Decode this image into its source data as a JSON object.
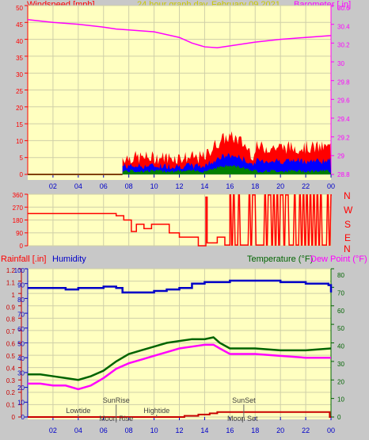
{
  "header": {
    "left": "Windspeed [mph]",
    "center": "24 hour graph day",
    "date": "February 09 2021",
    "right": "Barometer [.in]"
  },
  "bottom_header": {
    "rain": "Rainfall [.in]",
    "humidity": "Humidity",
    "temperature": "Temperature (°F)",
    "dewpoint": "Dew Point (°F)"
  },
  "colors": {
    "background": "#c8c8c8",
    "plot": "#ffffc0",
    "wind_label": "#ff0000",
    "center_label": "#c8c800",
    "baro": "#ff00ff",
    "humidity": "#0000c8",
    "temperature": "#006400",
    "dewpoint": "#ff00ff",
    "wind_gust": "#ff0000",
    "wind_avg": "#0000ff",
    "wind_low": "#008000",
    "direction": "#ff0000",
    "rain": "#c80000"
  },
  "compass_labels": [
    "N",
    "W",
    "S",
    "E",
    "N"
  ],
  "chart_data": [
    {
      "type": "line",
      "name": "wind-baro",
      "x_tick_labels": [
        "02",
        "04",
        "06",
        "08",
        "10",
        "12",
        "14",
        "16",
        "18",
        "20",
        "22",
        "00"
      ],
      "left_axis": {
        "label": "Windspeed [mph]",
        "ticks": [
          "50",
          "45",
          "40",
          "35",
          "30",
          "25",
          "20",
          "15",
          "10",
          "5",
          "0"
        ],
        "ylim": [
          0,
          50
        ]
      },
      "right_axis": {
        "label": "Barometer [.in]",
        "ticks": [
          "30.6",
          "30.4",
          "30.2",
          "30",
          "29.8",
          "29.6",
          "29.4",
          "29.2",
          "29",
          "28.8"
        ],
        "ylim": [
          28.8,
          30.6
        ]
      },
      "series": [
        {
          "name": "Barometer [.in]",
          "axis": "right",
          "x": [
            0,
            2,
            4,
            6,
            7,
            8,
            10,
            12,
            13,
            14,
            15,
            16,
            18,
            20,
            22,
            24
          ],
          "values": [
            30.45,
            30.42,
            30.4,
            30.37,
            30.35,
            30.34,
            30.32,
            30.26,
            30.2,
            30.16,
            30.15,
            30.17,
            30.21,
            30.24,
            30.26,
            30.28
          ]
        },
        {
          "type": "band",
          "axis": "left",
          "x_start": 7.5,
          "x_end": 24,
          "gust_base": 3,
          "gust_amp": 4,
          "avg_base": 1.5,
          "avg_amp": 2,
          "low_base": 0.5,
          "low_amp": 1,
          "peak_start": 14,
          "peak_end": 18,
          "peak_gain": 6,
          "max_gust": 15
        }
      ]
    },
    {
      "type": "step",
      "name": "wind-direction",
      "left_axis": {
        "ticks": [
          "360",
          "270",
          "180",
          "90",
          "0"
        ],
        "ylim": [
          0,
          360
        ]
      },
      "series": [
        {
          "name": "direction",
          "segments": [
            [
              0,
              225
            ],
            [
              7,
              225
            ],
            [
              7,
              210
            ],
            [
              7.6,
              210
            ],
            [
              7.6,
              180
            ],
            [
              8.2,
              180
            ],
            [
              8.2,
              100
            ],
            [
              8.6,
              100
            ],
            [
              8.6,
              150
            ],
            [
              9.2,
              150
            ],
            [
              9.2,
              120
            ],
            [
              9.8,
              120
            ],
            [
              9.8,
              150
            ],
            [
              11.2,
              150
            ],
            [
              11.2,
              90
            ],
            [
              12,
              90
            ],
            [
              12,
              60
            ],
            [
              13.5,
              60
            ],
            [
              13.5,
              0
            ],
            [
              14.1,
              0
            ],
            [
              14.1,
              340
            ],
            [
              14.2,
              340
            ],
            [
              14.2,
              20
            ],
            [
              15,
              20
            ],
            [
              15,
              60
            ],
            [
              15.6,
              60
            ],
            [
              15.6,
              5
            ],
            [
              16,
              5
            ]
          ],
          "oscillate_from": 16,
          "oscillate_to": 24,
          "high": 355,
          "low": 5
        }
      ]
    },
    {
      "type": "line",
      "name": "temp-humidity-rain",
      "x_tick_labels": [
        "02",
        "04",
        "06",
        "08",
        "10",
        "12",
        "14",
        "16",
        "18",
        "20",
        "22",
        "00"
      ],
      "left_axis": {
        "label": "Rainfall [.in]",
        "ticks": [
          "1.2",
          "1.1",
          "1",
          "0.9",
          "0.8",
          "0.7",
          "0.6",
          "0.5",
          "0.4",
          "0.3",
          "0.2",
          "0.1",
          "0"
        ],
        "ylim": [
          0,
          1.2
        ]
      },
      "humidity_axis": {
        "label": "Humidity",
        "ticks": [
          "100",
          "90",
          "80",
          "70",
          "60",
          "50",
          "40",
          "30",
          "20",
          "10",
          "0"
        ],
        "ylim": [
          0,
          100
        ]
      },
      "right_axis": {
        "label": "Temperature (°F)",
        "ticks": [
          "80",
          "70",
          "60",
          "50",
          "40",
          "30",
          "20",
          "10",
          "0"
        ],
        "ylim": [
          0,
          80
        ]
      },
      "series": [
        {
          "name": "Humidity",
          "axis": "humidity",
          "x": [
            0,
            2,
            3,
            4,
            6,
            7,
            7.5,
            8,
            9,
            10,
            11,
            12,
            13,
            14,
            15,
            16,
            18,
            20,
            22,
            23.8,
            24
          ],
          "values": [
            87,
            87,
            86,
            87,
            88,
            87,
            84,
            84,
            84,
            85,
            86,
            87,
            90,
            91,
            91,
            92,
            92,
            91,
            90,
            89,
            84
          ]
        },
        {
          "name": "Temperature (°F)",
          "axis": "right",
          "x": [
            0,
            1,
            2,
            3,
            4,
            5,
            6,
            7,
            8,
            9,
            10,
            11,
            12,
            13,
            14,
            14.7,
            15.2,
            16,
            18,
            20,
            22,
            24
          ],
          "values": [
            23,
            23,
            22,
            21,
            20,
            22,
            25,
            30,
            34,
            36,
            38,
            40,
            41,
            42,
            42,
            43,
            40,
            37,
            37,
            36,
            36,
            37
          ]
        },
        {
          "name": "Dew Point (°F)",
          "axis": "right",
          "x": [
            0,
            1,
            2,
            3,
            4,
            5,
            6,
            7,
            8,
            9,
            10,
            11,
            12,
            13,
            14,
            14.7,
            15.2,
            16,
            18,
            20,
            22,
            24
          ],
          "values": [
            18,
            18,
            17,
            17,
            15,
            17,
            21,
            26,
            29,
            31,
            33,
            35,
            37,
            38,
            39,
            39,
            37,
            34,
            34,
            33,
            32,
            32
          ]
        },
        {
          "name": "Rainfall [.in]",
          "axis": "left",
          "x": [
            0,
            12.4,
            12.4,
            13.5,
            13.5,
            14.4,
            14.4,
            15,
            15,
            23.9,
            23.9,
            24
          ],
          "values": [
            0,
            0,
            0.01,
            0.01,
            0.02,
            0.02,
            0.03,
            0.03,
            0.04,
            0.04,
            0,
            0
          ]
        }
      ],
      "annotations": [
        {
          "text": "Lowtide",
          "x": 4.0,
          "level": 1
        },
        {
          "text": "SunRise",
          "x": 7.0,
          "level": 2
        },
        {
          "text": "Moon Rise",
          "x": 7.0,
          "level": 0
        },
        {
          "text": "Hightide",
          "x": 10.2,
          "level": 1
        },
        {
          "text": "SunSet",
          "x": 17.1,
          "level": 2
        },
        {
          "text": "Moon Set",
          "x": 17.0,
          "level": 0
        }
      ]
    }
  ]
}
